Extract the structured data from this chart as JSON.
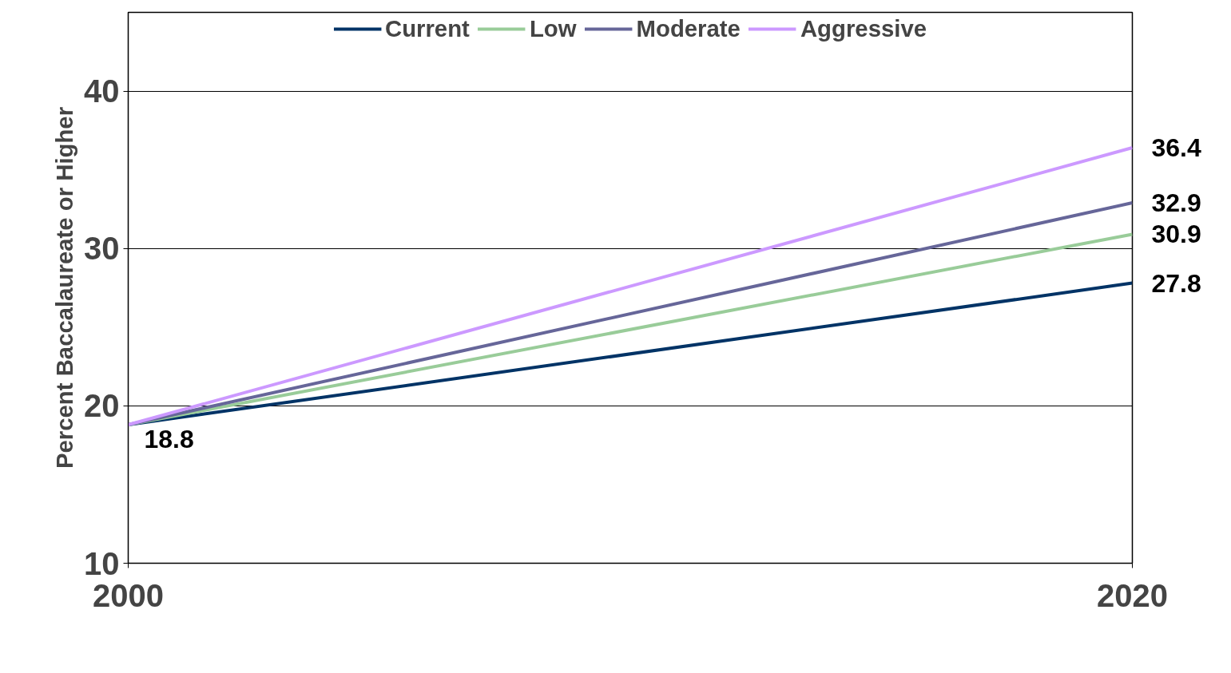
{
  "chart_data": {
    "type": "line",
    "ylabel": "Percent Baccalaureate or Higher",
    "x": [
      2000,
      2020
    ],
    "xlim": [
      2000,
      2020
    ],
    "xticks": [
      2000,
      2020
    ],
    "ylim": [
      10,
      45
    ],
    "yticks": [
      10,
      20,
      30,
      40
    ],
    "grid": "y",
    "legend": "top",
    "line_style": "solid",
    "marker": "none",
    "series": [
      {
        "name": "Current",
        "color": "#003366",
        "values": [
          18.8,
          27.8
        ],
        "value_labels": [
          "18.8",
          "27.8"
        ]
      },
      {
        "name": "Low",
        "color": "#99cc99",
        "values": [
          18.8,
          30.9
        ],
        "value_labels": [
          null,
          "30.9"
        ]
      },
      {
        "name": "Moderate",
        "color": "#666699",
        "values": [
          18.8,
          32.9
        ],
        "value_labels": [
          null,
          "32.9"
        ]
      },
      {
        "name": "Aggressive",
        "color": "#cc99ff",
        "values": [
          18.8,
          36.4
        ],
        "value_labels": [
          null,
          "36.4"
        ]
      }
    ]
  }
}
